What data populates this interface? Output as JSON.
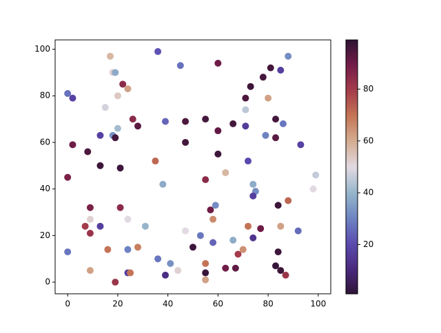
{
  "chart_data": {
    "type": "scatter",
    "x": [
      0,
      0,
      0,
      2,
      2,
      8,
      9,
      9,
      7,
      9,
      9,
      13,
      13,
      13,
      15,
      16,
      17,
      18,
      19,
      18,
      19,
      20,
      20,
      22,
      24,
      21,
      21,
      19,
      24,
      24,
      24,
      25,
      26,
      28,
      28,
      31,
      35,
      36,
      36,
      38,
      39,
      39,
      41,
      44,
      45,
      47,
      47,
      47,
      50,
      53,
      55,
      55,
      55,
      55,
      55,
      57,
      58,
      58,
      59,
      60,
      60,
      60,
      63,
      63,
      66,
      66,
      67,
      68,
      70,
      71,
      71,
      71,
      72,
      72,
      73,
      74,
      75,
      74,
      74,
      77,
      78,
      79,
      80,
      81,
      83,
      83,
      83,
      84,
      84,
      85,
      85,
      85,
      86,
      87,
      88,
      88,
      92,
      93,
      98,
      99
    ],
    "y": [
      13,
      45,
      81,
      79,
      59,
      56,
      32,
      27,
      24,
      21,
      5,
      24,
      50,
      63,
      75,
      14,
      97,
      90,
      90,
      63,
      62,
      66,
      80,
      85,
      83,
      32,
      49,
      0,
      27,
      14,
      4,
      4,
      70,
      67,
      15,
      24,
      52,
      99,
      10,
      42,
      69,
      3,
      8,
      5,
      93,
      69,
      60,
      22,
      15,
      20,
      70,
      44,
      8,
      4,
      1,
      31,
      27,
      17,
      33,
      94,
      65,
      55,
      47,
      6,
      68,
      18,
      6,
      12,
      14,
      79,
      74,
      67,
      52,
      24,
      84,
      42,
      39,
      37,
      19,
      23,
      88,
      63,
      79,
      92,
      70,
      62,
      7,
      33,
      13,
      5,
      91,
      24,
      68,
      3,
      97,
      35,
      22,
      59,
      40,
      46
    ],
    "c": [
      28,
      88,
      27,
      18,
      90,
      95,
      88,
      52,
      80,
      82,
      62,
      17,
      97,
      18,
      48,
      70,
      58,
      52,
      38,
      33,
      96,
      42,
      54,
      85,
      62,
      85,
      97,
      82,
      50,
      30,
      17,
      70,
      85,
      93,
      68,
      40,
      72,
      22,
      28,
      38,
      25,
      12,
      33,
      52,
      27,
      95,
      96,
      50,
      97,
      28,
      96,
      85,
      70,
      98,
      62,
      90,
      66,
      25,
      32,
      90,
      92,
      97,
      58,
      90,
      96,
      38,
      92,
      80,
      65,
      95,
      45,
      16,
      20,
      70,
      97,
      38,
      32,
      17,
      14,
      90,
      96,
      30,
      62,
      96,
      96,
      93,
      98,
      97,
      97,
      97,
      17,
      62,
      28,
      82,
      32,
      72,
      26,
      18,
      50,
      46
    ],
    "clim": [
      1,
      99
    ],
    "cticks": [
      20,
      40,
      60,
      80
    ],
    "colormap": [
      "#2f1436",
      "#4a2a7e",
      "#5b4bb0",
      "#6e85c2",
      "#97b6cb",
      "#e2d9e2",
      "#d4ae93",
      "#c57656",
      "#a63d4b",
      "#751d48",
      "#2f1436"
    ],
    "xlim": [
      -5,
      105
    ],
    "ylim": [
      -5,
      104
    ],
    "xticks": [
      0,
      20,
      40,
      60,
      80,
      100
    ],
    "yticks": [
      0,
      20,
      40,
      60,
      80,
      100
    ],
    "grid": false
  }
}
